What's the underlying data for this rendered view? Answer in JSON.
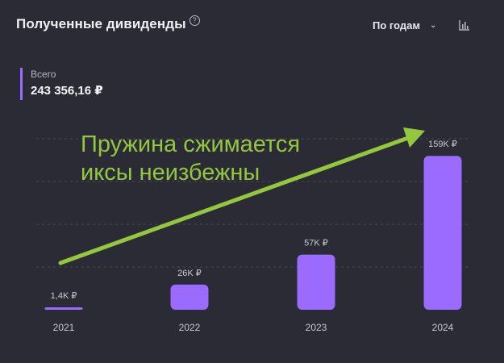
{
  "header": {
    "title": "Полученные дивиденды",
    "help_symbol": "?",
    "period_label": "По годам",
    "chart_type_icon": "bar-chart-icon"
  },
  "summary": {
    "label": "Всего",
    "value": "243 356,16 ₽",
    "accent": "#9b6bff"
  },
  "annotation": {
    "line1": "Пружина сжимается",
    "line2": "иксы неизбежны",
    "color": "#93c83e"
  },
  "chart_data": {
    "type": "bar",
    "categories": [
      "2021",
      "2022",
      "2023",
      "2024"
    ],
    "values": [
      1400,
      26000,
      57000,
      159000
    ],
    "value_labels": [
      "1,4K ₽",
      "26K ₽",
      "57K ₽",
      "159K ₽"
    ],
    "ylim": [
      0,
      180000
    ],
    "grid": true,
    "bar_color": "#9b6bff"
  }
}
